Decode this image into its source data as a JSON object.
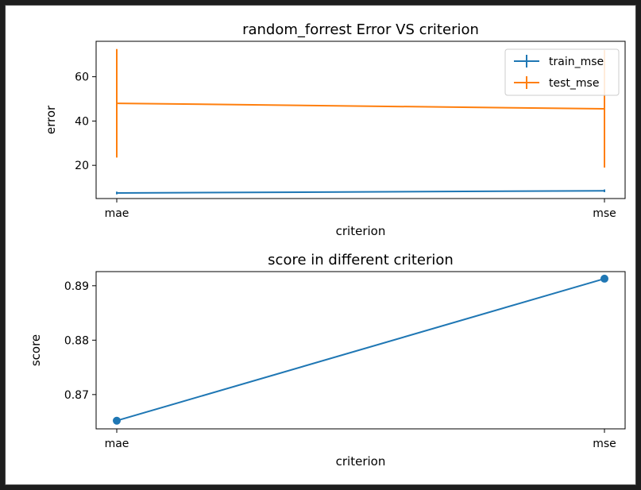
{
  "chart_data": [
    {
      "type": "line",
      "title": "random_forrest Error VS criterion",
      "xlabel": "criterion",
      "ylabel": "error",
      "categories": [
        "mae",
        "mse"
      ],
      "ylim": [
        5,
        76
      ],
      "yticks": [
        20,
        40,
        60
      ],
      "legend_position": "top-right",
      "series": [
        {
          "name": "train_mse",
          "color": "#1f77b4",
          "values": [
            7.5,
            8.5
          ],
          "error": [
            0.6,
            0.6
          ]
        },
        {
          "name": "test_mse",
          "color": "#ff7f0e",
          "values": [
            48,
            45.5
          ],
          "error": [
            24.5,
            26.5
          ]
        }
      ]
    },
    {
      "type": "line",
      "title": "score in different criterion",
      "xlabel": "criterion",
      "ylabel": "score",
      "categories": [
        "mae",
        "mse"
      ],
      "ylim": [
        0.8637,
        0.8926
      ],
      "yticks": [
        0.87,
        0.88,
        0.89
      ],
      "markers": true,
      "series": [
        {
          "color": "#1f77b4",
          "values": [
            0.8652,
            0.8913
          ]
        }
      ]
    }
  ]
}
